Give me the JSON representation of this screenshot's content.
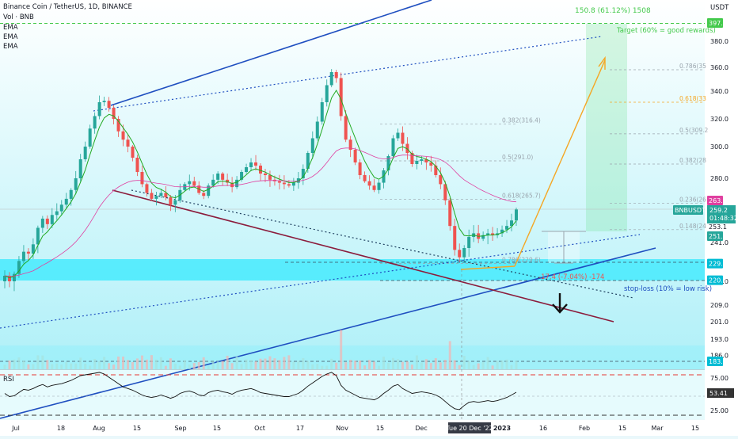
{
  "header": {
    "title": "Binance Coin / TetherUS, 1D, BINANCE",
    "vol": "Vol · BNB",
    "indicators": [
      "EMA",
      "EMA",
      "EMA"
    ]
  },
  "price_axis": {
    "currency": "USDT",
    "ticks": [
      "380.0",
      "360.0",
      "340.0",
      "320.0",
      "300.0",
      "280.0",
      "260.0",
      "241.0",
      "220.0",
      "209.0",
      "201.0",
      "193.0",
      "186.0"
    ]
  },
  "price_tags": {
    "target": "397.6",
    "ema_a": "263.9",
    "symbol": "BNBUSDT",
    "last": "259.2",
    "countdown": "01:48:32",
    "level_a": "253.1",
    "ema_b": "251.6",
    "support": "229.6",
    "stop": "220.6",
    "low": "183.4"
  },
  "rsi": {
    "label": "RSI",
    "ticks": [
      "75.00",
      "25.00"
    ],
    "value": "53.41"
  },
  "time_axis": {
    "ticks": [
      "Jul",
      "18",
      "Aug",
      "15",
      "Sep",
      "15",
      "Oct",
      "17",
      "Nov",
      "15",
      "Dec",
      "15",
      "2023",
      "16",
      "Feb",
      "15",
      "Mar",
      "15"
    ],
    "crosshair": "Tue 20 Dec '22"
  },
  "annotations": {
    "target_gain": "150.8 (61.12%) 1508",
    "target_note": "Target (60% = good rewards)",
    "risk": "-17.4 (-7.04%) -174",
    "stop_note": "stop-loss (10% = low risk)"
  },
  "fib_levels": [
    {
      "label": "0.786(35",
      "price": 358,
      "color": "#9aa4ad"
    },
    {
      "label": "0.618(33",
      "price": 332,
      "color": "#f5a623"
    },
    {
      "label": "0.5(309.2",
      "price": 309.2,
      "color": "#9aa4ad"
    },
    {
      "label": "0.382(28",
      "price": 289,
      "color": "#9aa4ad"
    },
    {
      "label": "0.236(26",
      "price": 263,
      "color": "#9aa4ad"
    },
    {
      "label": "0.148(24",
      "price": 248,
      "color": "#9aa4ad"
    },
    {
      "label": "0.382(316.4)",
      "price": 316.4,
      "color": "#9aa4ad"
    },
    {
      "label": "0.5(291.0)",
      "price": 291,
      "color": "#9aa4ad"
    },
    {
      "label": "0.618(265.7)",
      "price": 265.7,
      "color": "#9aa4ad"
    },
    {
      "label": "0.786(229.6)",
      "price": 229.6,
      "color": "#9aa4ad"
    }
  ],
  "colors": {
    "up": "#26a69a",
    "down": "#ef5350",
    "channel_blue": "#1f4fc0",
    "channel_maroon": "#8b1c3c",
    "projection": "#f5a623",
    "ema_pink": "#e040a0",
    "support_zone": "#00e5ff"
  },
  "chart_data": {
    "type": "candlestick",
    "symbol": "BNBUSDT",
    "timeframe": "1D",
    "price_range": [
      183,
      405
    ],
    "key_levels": {
      "target": 397.6,
      "ema_a": 263.9,
      "last": 259.2,
      "level_a": 253.1,
      "ema_b": 251.6,
      "support": 229.6,
      "stop": 220.6,
      "low": 183.4
    },
    "closes": [
      223,
      220,
      224,
      231,
      236,
      235,
      240,
      249,
      254,
      251,
      256,
      258,
      262,
      266,
      272,
      280,
      292,
      300,
      313,
      322,
      332,
      333,
      328,
      320,
      311,
      305,
      300,
      293,
      284,
      276,
      270,
      266,
      268,
      270,
      267,
      262,
      265,
      272,
      276,
      278,
      275,
      270,
      268,
      275,
      279,
      283,
      279,
      277,
      274,
      279,
      284,
      287,
      290,
      288,
      283,
      282,
      279,
      278,
      277,
      276,
      275,
      277,
      280,
      286,
      296,
      306,
      318,
      332,
      345,
      356,
      351,
      322,
      305,
      298,
      290,
      282,
      278,
      275,
      272,
      277,
      285,
      294,
      306,
      310,
      302,
      296,
      289,
      291,
      292,
      290,
      288,
      282,
      276,
      265,
      250,
      237,
      233,
      238,
      244,
      246,
      243,
      245,
      246,
      245,
      246,
      248,
      250,
      253,
      259
    ],
    "rsi": [
      52,
      48,
      49,
      53,
      57,
      56,
      58,
      61,
      63,
      60,
      62,
      63,
      64,
      66,
      68,
      71,
      74,
      75,
      76,
      77,
      78,
      76,
      72,
      68,
      64,
      60,
      58,
      56,
      53,
      50,
      48,
      47,
      48,
      50,
      48,
      46,
      48,
      52,
      54,
      55,
      53,
      50,
      49,
      53,
      55,
      56,
      54,
      53,
      51,
      54,
      56,
      57,
      58,
      56,
      53,
      52,
      51,
      50,
      49,
      48,
      48,
      50,
      52,
      56,
      61,
      65,
      69,
      73,
      76,
      78,
      74,
      62,
      56,
      53,
      50,
      47,
      46,
      45,
      44,
      47,
      52,
      56,
      61,
      63,
      58,
      55,
      52,
      53,
      54,
      53,
      52,
      50,
      47,
      42,
      37,
      33,
      32,
      37,
      41,
      42,
      41,
      42,
      43,
      42,
      43,
      45,
      47,
      50,
      53.41
    ]
  }
}
